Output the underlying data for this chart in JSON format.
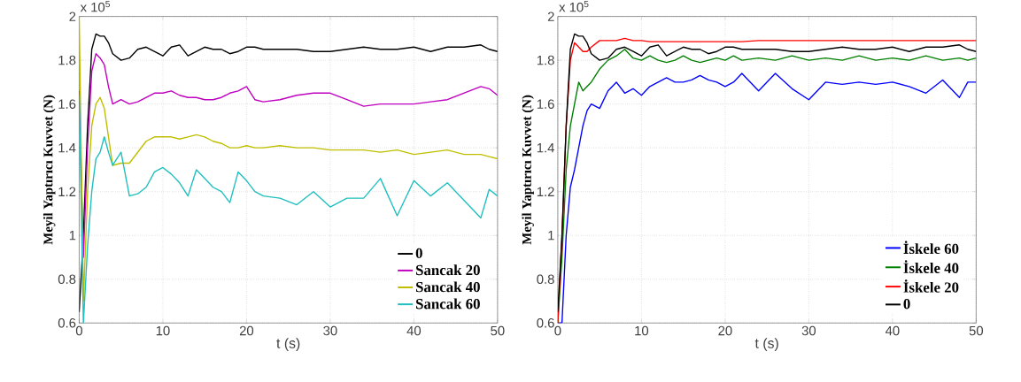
{
  "chart_data": [
    {
      "type": "line",
      "xlabel": "t (s)",
      "ylabel": "Meyil Yaptırıcı Kuvvet (N)",
      "annotations": [
        "x 10$^{5}$"
      ],
      "x": [
        0,
        0.5,
        1,
        1.5,
        2,
        2.5,
        3,
        3.5,
        4,
        5,
        6,
        7,
        8,
        9,
        10,
        11,
        12,
        13,
        14,
        15,
        16,
        17,
        18,
        19,
        20,
        21,
        22,
        24,
        26,
        28,
        30,
        32,
        34,
        36,
        38,
        40,
        42,
        44,
        46,
        48,
        49,
        50
      ],
      "xlim": [
        0,
        50
      ],
      "xticks": [
        0,
        10,
        20,
        30,
        40,
        50
      ],
      "ylim": [
        0.6,
        2
      ],
      "yticks": [
        0.6,
        0.8,
        1,
        1.2,
        1.4,
        1.6,
        1.8,
        2
      ],
      "grid": true,
      "legend": "bottom right",
      "line_style": "solid",
      "series": [
        {
          "name": "0",
          "color": "#000000",
          "values": [
            0.65,
            1.0,
            1.5,
            1.85,
            1.92,
            1.91,
            1.91,
            1.88,
            1.83,
            1.8,
            1.81,
            1.85,
            1.86,
            1.84,
            1.82,
            1.86,
            1.87,
            1.82,
            1.84,
            1.86,
            1.85,
            1.85,
            1.83,
            1.84,
            1.86,
            1.86,
            1.85,
            1.85,
            1.85,
            1.84,
            1.84,
            1.85,
            1.86,
            1.85,
            1.85,
            1.86,
            1.84,
            1.86,
            1.86,
            1.87,
            1.85,
            1.84
          ]
        },
        {
          "name": "Sancak 20",
          "color": "#c000c0",
          "values": [
            1.66,
            0.9,
            1.4,
            1.75,
            1.83,
            1.81,
            1.78,
            1.68,
            1.6,
            1.62,
            1.6,
            1.61,
            1.63,
            1.65,
            1.65,
            1.66,
            1.64,
            1.63,
            1.63,
            1.62,
            1.62,
            1.63,
            1.65,
            1.66,
            1.68,
            1.62,
            1.61,
            1.62,
            1.64,
            1.65,
            1.65,
            1.62,
            1.59,
            1.6,
            1.6,
            1.6,
            1.61,
            1.62,
            1.65,
            1.68,
            1.67,
            1.64
          ]
        },
        {
          "name": "Sancak 40",
          "color": "#bfbf00",
          "values": [
            2.0,
            0.7,
            1.2,
            1.5,
            1.6,
            1.63,
            1.58,
            1.45,
            1.32,
            1.33,
            1.33,
            1.38,
            1.43,
            1.45,
            1.45,
            1.45,
            1.44,
            1.45,
            1.46,
            1.45,
            1.43,
            1.42,
            1.4,
            1.4,
            1.41,
            1.4,
            1.4,
            1.41,
            1.4,
            1.4,
            1.39,
            1.39,
            1.39,
            1.38,
            1.39,
            1.37,
            1.38,
            1.39,
            1.37,
            1.37,
            1.36,
            1.35
          ]
        },
        {
          "name": "Sancak 60",
          "color": "#1fbfbf",
          "values": [
            1.64,
            0.6,
            0.95,
            1.2,
            1.35,
            1.38,
            1.45,
            1.38,
            1.32,
            1.38,
            1.18,
            1.19,
            1.22,
            1.29,
            1.31,
            1.28,
            1.24,
            1.18,
            1.3,
            1.26,
            1.22,
            1.2,
            1.15,
            1.29,
            1.25,
            1.2,
            1.18,
            1.17,
            1.14,
            1.2,
            1.13,
            1.17,
            1.17,
            1.26,
            1.09,
            1.25,
            1.18,
            1.24,
            1.16,
            1.08,
            1.21,
            1.18
          ]
        }
      ]
    },
    {
      "type": "line",
      "xlabel": "t (s)",
      "ylabel": "Meyil Yaptırıcı Kuvvet (N)",
      "annotations": [
        "x 10$^{5}$"
      ],
      "x": [
        0,
        0.5,
        1,
        1.5,
        2,
        2.5,
        3,
        3.5,
        4,
        5,
        6,
        7,
        8,
        9,
        10,
        11,
        12,
        13,
        14,
        15,
        16,
        17,
        18,
        19,
        20,
        21,
        22,
        24,
        26,
        28,
        30,
        32,
        34,
        36,
        38,
        40,
        42,
        44,
        46,
        48,
        49,
        50
      ],
      "xlim": [
        0,
        50
      ],
      "xticks": [
        0,
        10,
        20,
        30,
        40,
        50
      ],
      "ylim": [
        0.6,
        2
      ],
      "yticks": [
        0.6,
        0.8,
        1,
        1.2,
        1.4,
        1.6,
        1.8,
        2
      ],
      "grid": true,
      "legend": "bottom right",
      "line_style": "solid",
      "series": [
        {
          "name": "İskele 60",
          "color": "#0000ff",
          "values": [
            0.6,
            0.6,
            1.0,
            1.22,
            1.3,
            1.4,
            1.5,
            1.57,
            1.6,
            1.58,
            1.66,
            1.7,
            1.65,
            1.67,
            1.64,
            1.68,
            1.7,
            1.72,
            1.7,
            1.7,
            1.71,
            1.73,
            1.71,
            1.7,
            1.68,
            1.7,
            1.74,
            1.66,
            1.74,
            1.67,
            1.62,
            1.7,
            1.69,
            1.7,
            1.69,
            1.7,
            1.68,
            1.65,
            1.71,
            1.63,
            1.7,
            1.7
          ]
        },
        {
          "name": "İskele 40",
          "color": "#008000",
          "values": [
            0.6,
            0.9,
            1.3,
            1.5,
            1.6,
            1.7,
            1.66,
            1.68,
            1.7,
            1.76,
            1.8,
            1.82,
            1.85,
            1.81,
            1.8,
            1.82,
            1.8,
            1.79,
            1.8,
            1.82,
            1.8,
            1.79,
            1.8,
            1.81,
            1.8,
            1.82,
            1.8,
            1.81,
            1.8,
            1.82,
            1.8,
            1.81,
            1.8,
            1.82,
            1.8,
            1.81,
            1.8,
            1.82,
            1.8,
            1.81,
            1.8,
            1.81
          ]
        },
        {
          "name": "İskele 20",
          "color": "#ff0000",
          "values": [
            0.6,
            1.0,
            1.5,
            1.8,
            1.88,
            1.86,
            1.84,
            1.84,
            1.86,
            1.89,
            1.89,
            1.89,
            1.9,
            1.89,
            1.89,
            1.885,
            1.885,
            1.885,
            1.885,
            1.885,
            1.885,
            1.885,
            1.885,
            1.885,
            1.885,
            1.885,
            1.885,
            1.89,
            1.89,
            1.89,
            1.89,
            1.89,
            1.89,
            1.89,
            1.89,
            1.89,
            1.89,
            1.89,
            1.89,
            1.89,
            1.89,
            1.89
          ]
        },
        {
          "name": "0",
          "color": "#000000",
          "values": [
            0.65,
            1.0,
            1.5,
            1.85,
            1.92,
            1.91,
            1.91,
            1.88,
            1.83,
            1.8,
            1.81,
            1.85,
            1.86,
            1.84,
            1.82,
            1.86,
            1.87,
            1.82,
            1.84,
            1.86,
            1.85,
            1.85,
            1.83,
            1.84,
            1.86,
            1.86,
            1.85,
            1.85,
            1.85,
            1.84,
            1.84,
            1.85,
            1.86,
            1.85,
            1.85,
            1.86,
            1.84,
            1.86,
            1.86,
            1.87,
            1.85,
            1.84
          ]
        }
      ]
    }
  ]
}
